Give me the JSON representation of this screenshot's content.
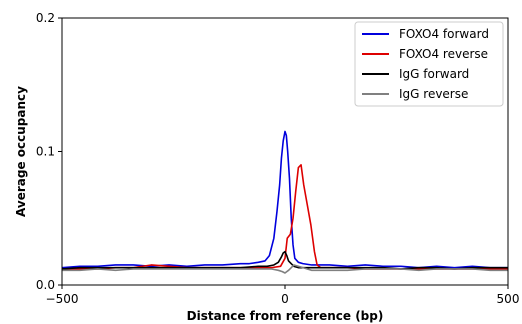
{
  "chart_data": {
    "type": "line",
    "title": "",
    "xlabel": "Distance from reference (bp)",
    "ylabel": "Average occupancy",
    "xlim": [
      -500,
      500
    ],
    "ylim": [
      0,
      0.2
    ],
    "x_ticks": [
      -500,
      0,
      500
    ],
    "x_tick_labels": [
      "−500",
      "0",
      "500"
    ],
    "y_ticks": [
      0.0,
      0.1,
      0.2
    ],
    "y_tick_labels": [
      "0.0",
      "0.1",
      "0.2"
    ],
    "grid": false,
    "legend_position": "top-right",
    "series": [
      {
        "name": "FOXO4 forward",
        "color": "#0000dd",
        "x": [
          -500,
          -460,
          -420,
          -380,
          -340,
          -300,
          -260,
          -220,
          -180,
          -140,
          -100,
          -80,
          -60,
          -45,
          -35,
          -25,
          -18,
          -12,
          -8,
          -4,
          0,
          3,
          6,
          10,
          14,
          18,
          22,
          30,
          40,
          60,
          80,
          100,
          140,
          180,
          220,
          260,
          300,
          340,
          380,
          420,
          460,
          500
        ],
        "y": [
          0.013,
          0.014,
          0.014,
          0.015,
          0.015,
          0.014,
          0.015,
          0.014,
          0.015,
          0.015,
          0.016,
          0.016,
          0.017,
          0.018,
          0.022,
          0.035,
          0.055,
          0.075,
          0.095,
          0.108,
          0.115,
          0.112,
          0.1,
          0.08,
          0.05,
          0.03,
          0.02,
          0.017,
          0.016,
          0.015,
          0.015,
          0.015,
          0.014,
          0.015,
          0.014,
          0.014,
          0.013,
          0.014,
          0.013,
          0.014,
          0.013,
          0.013
        ]
      },
      {
        "name": "FOXO4 reverse",
        "color": "#dd0000",
        "x": [
          -500,
          -460,
          -420,
          -380,
          -340,
          -300,
          -260,
          -220,
          -180,
          -140,
          -100,
          -60,
          -30,
          -10,
          0,
          5,
          12,
          18,
          24,
          30,
          36,
          42,
          50,
          58,
          66,
          72,
          80,
          100,
          140,
          180,
          220,
          260,
          300,
          340,
          380,
          420,
          460,
          500
        ],
        "y": [
          0.012,
          0.012,
          0.012,
          0.013,
          0.013,
          0.015,
          0.014,
          0.013,
          0.013,
          0.013,
          0.013,
          0.013,
          0.013,
          0.014,
          0.02,
          0.035,
          0.038,
          0.05,
          0.07,
          0.088,
          0.09,
          0.075,
          0.06,
          0.045,
          0.025,
          0.015,
          0.013,
          0.013,
          0.013,
          0.012,
          0.012,
          0.012,
          0.012,
          0.012,
          0.012,
          0.012,
          0.012,
          0.012
        ]
      },
      {
        "name": "IgG forward",
        "color": "#000000",
        "x": [
          -500,
          -460,
          -420,
          -380,
          -340,
          -300,
          -260,
          -220,
          -180,
          -140,
          -100,
          -60,
          -40,
          -25,
          -15,
          -8,
          -4,
          0,
          4,
          8,
          14,
          20,
          30,
          45,
          60,
          80,
          100,
          140,
          180,
          220,
          260,
          300,
          340,
          380,
          420,
          460,
          500
        ],
        "y": [
          0.012,
          0.013,
          0.013,
          0.013,
          0.013,
          0.013,
          0.013,
          0.013,
          0.013,
          0.013,
          0.013,
          0.014,
          0.014,
          0.015,
          0.017,
          0.021,
          0.024,
          0.025,
          0.022,
          0.018,
          0.016,
          0.014,
          0.013,
          0.013,
          0.013,
          0.013,
          0.013,
          0.013,
          0.013,
          0.013,
          0.012,
          0.013,
          0.013,
          0.012,
          0.013,
          0.013,
          0.013
        ]
      },
      {
        "name": "IgG reverse",
        "color": "#808080",
        "x": [
          -500,
          -460,
          -420,
          -380,
          -340,
          -300,
          -260,
          -220,
          -180,
          -140,
          -100,
          -60,
          -30,
          -15,
          -6,
          0,
          4,
          8,
          14,
          20,
          30,
          40,
          50,
          60,
          70,
          80,
          100,
          140,
          180,
          220,
          260,
          300,
          340,
          380,
          420,
          460,
          500
        ],
        "y": [
          0.011,
          0.011,
          0.012,
          0.011,
          0.012,
          0.012,
          0.012,
          0.012,
          0.012,
          0.012,
          0.012,
          0.012,
          0.012,
          0.011,
          0.01,
          0.009,
          0.01,
          0.011,
          0.013,
          0.015,
          0.014,
          0.013,
          0.012,
          0.011,
          0.011,
          0.011,
          0.011,
          0.011,
          0.012,
          0.012,
          0.012,
          0.011,
          0.012,
          0.012,
          0.012,
          0.011,
          0.011
        ]
      }
    ]
  }
}
